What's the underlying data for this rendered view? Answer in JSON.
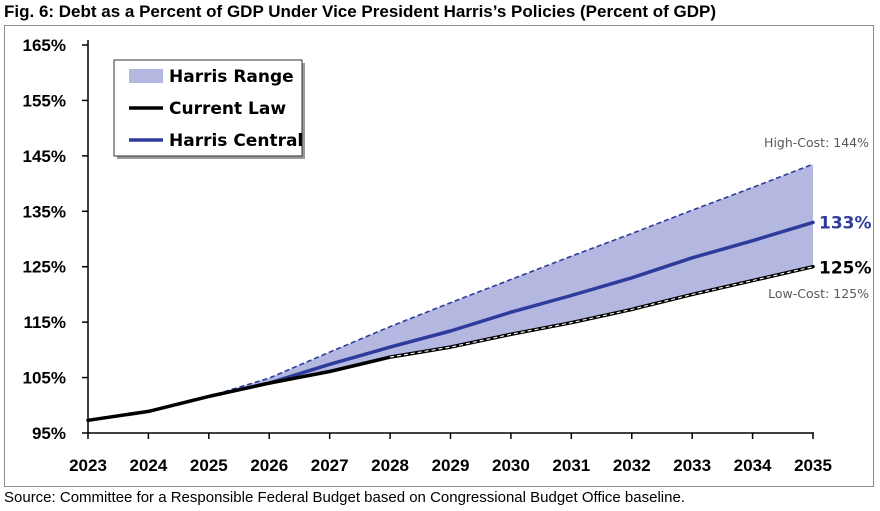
{
  "chart_data": {
    "type": "line",
    "title": "Fig. 6: Debt as a Percent of GDP Under Vice President Harris’s Policies (Percent of GDP)",
    "source": "Source: Committee for a Responsible Federal Budget based on Congressional Budget Office baseline.",
    "x": [
      "2023",
      "2024",
      "2025",
      "2026",
      "2027",
      "2028",
      "2029",
      "2030",
      "2031",
      "2032",
      "2033",
      "2034",
      "2035"
    ],
    "ylim": [
      95,
      165
    ],
    "yticks": [
      95,
      105,
      115,
      125,
      135,
      145,
      155,
      165
    ],
    "ytick_labels": [
      "95%",
      "105%",
      "115%",
      "125%",
      "135%",
      "145%",
      "155%",
      "165%"
    ],
    "series": [
      {
        "name": "Current Law",
        "color": "#000000",
        "values": [
          97.3,
          98.9,
          101.6,
          104.0,
          106.1,
          108.7,
          110.5,
          112.8,
          114.9,
          117.3,
          120.0,
          122.5,
          125.0
        ]
      },
      {
        "name": "Harris Central",
        "color": "#2e3b9b",
        "values": [
          null,
          null,
          101.6,
          104.0,
          107.4,
          110.5,
          113.4,
          116.8,
          119.8,
          123.0,
          126.6,
          129.7,
          133.0
        ]
      }
    ],
    "range": {
      "name": "Harris Range",
      "color": "#b4b8e0",
      "low": [
        null,
        null,
        101.6,
        104.0,
        106.0,
        108.6,
        110.4,
        112.7,
        114.8,
        117.2,
        119.9,
        122.4,
        125.0
      ],
      "high": [
        null,
        null,
        101.6,
        104.9,
        109.6,
        114.2,
        118.5,
        122.7,
        126.9,
        131.0,
        135.2,
        139.3,
        143.5
      ]
    },
    "legend": {
      "position": "top-left",
      "items": [
        "Harris Range",
        "Current Law",
        "Harris Central"
      ]
    },
    "annotations": {
      "high_cost": "High-Cost: 144%",
      "low_cost": "Low-Cost: 125%",
      "central_end": "133%",
      "current_end": "125%"
    }
  }
}
